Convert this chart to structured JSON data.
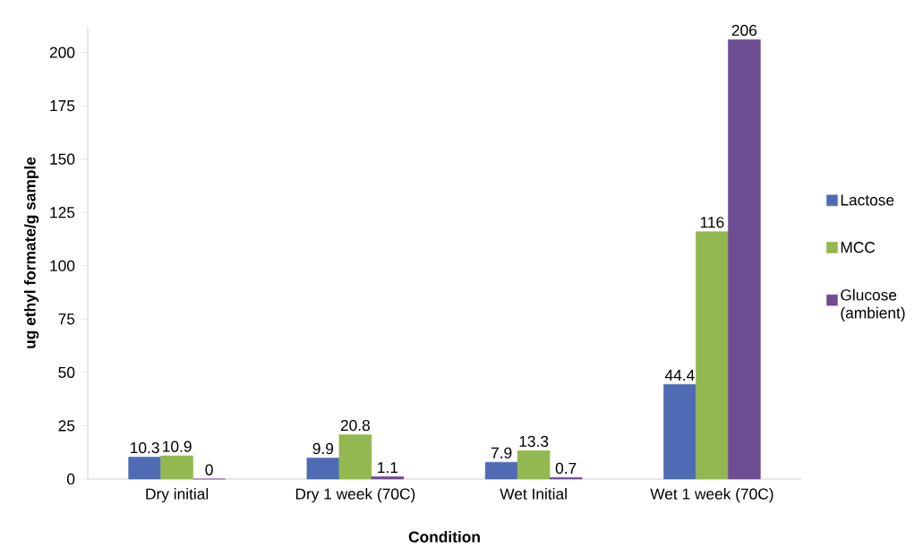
{
  "chart_data": {
    "type": "bar",
    "xlabel": "Condition",
    "ylabel": "ug ethyl formate/g sample",
    "categories": [
      "Dry initial",
      "Dry 1 week (70C)",
      "Wet Initial",
      "Wet 1 week  (70C)"
    ],
    "series": [
      {
        "name": "Lactose",
        "color": "#4f6bb3",
        "values": [
          10.3,
          9.9,
          7.9,
          44.4
        ]
      },
      {
        "name": "MCC",
        "color": "#93b84f",
        "values": [
          10.9,
          20.8,
          13.3,
          116
        ]
      },
      {
        "name": "Glucose (ambient)",
        "color": "#6e4c93",
        "values": [
          0,
          1.1,
          0.7,
          206
        ]
      }
    ],
    "ylim": [
      0,
      212
    ],
    "yticks": [
      0,
      25,
      50,
      75,
      100,
      125,
      150,
      175,
      200
    ],
    "data_labels": true,
    "legend": "right",
    "grid": false
  }
}
